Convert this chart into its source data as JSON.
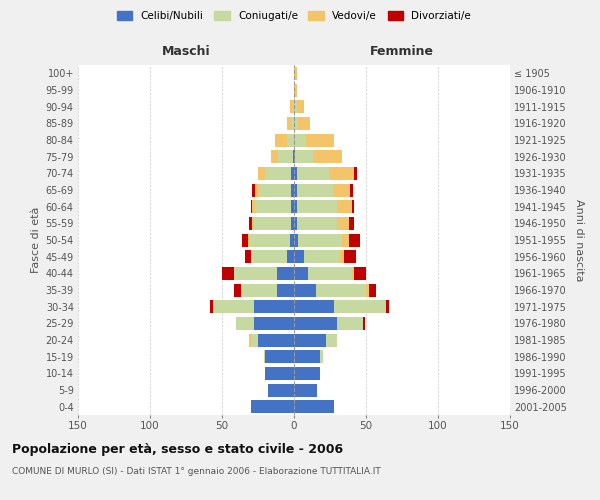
{
  "age_groups": [
    "0-4",
    "5-9",
    "10-14",
    "15-19",
    "20-24",
    "25-29",
    "30-34",
    "35-39",
    "40-44",
    "45-49",
    "50-54",
    "55-59",
    "60-64",
    "65-69",
    "70-74",
    "75-79",
    "80-84",
    "85-89",
    "90-94",
    "95-99",
    "100+"
  ],
  "birth_years": [
    "2001-2005",
    "1996-2000",
    "1991-1995",
    "1986-1990",
    "1981-1985",
    "1976-1980",
    "1971-1975",
    "1966-1970",
    "1961-1965",
    "1956-1960",
    "1951-1955",
    "1946-1950",
    "1941-1945",
    "1936-1940",
    "1931-1935",
    "1926-1930",
    "1921-1925",
    "1916-1920",
    "1911-1915",
    "1906-1910",
    "≤ 1905"
  ],
  "male_celibi": [
    30,
    18,
    20,
    20,
    25,
    28,
    28,
    12,
    12,
    5,
    3,
    2,
    2,
    2,
    2,
    1,
    0,
    0,
    0,
    0,
    0
  ],
  "male_coniugati": [
    0,
    0,
    0,
    1,
    5,
    12,
    28,
    25,
    30,
    25,
    28,
    26,
    25,
    22,
    18,
    10,
    5,
    2,
    1,
    0,
    0
  ],
  "male_vedovi": [
    0,
    0,
    0,
    0,
    1,
    0,
    0,
    0,
    0,
    0,
    1,
    1,
    2,
    3,
    5,
    5,
    8,
    3,
    2,
    0,
    0
  ],
  "male_divorziati": [
    0,
    0,
    0,
    0,
    0,
    0,
    2,
    5,
    8,
    4,
    4,
    2,
    1,
    2,
    0,
    0,
    0,
    0,
    0,
    0,
    0
  ],
  "female_celibi": [
    28,
    16,
    18,
    18,
    22,
    30,
    28,
    15,
    10,
    7,
    3,
    2,
    2,
    2,
    2,
    1,
    0,
    0,
    0,
    0,
    0
  ],
  "female_coniugati": [
    0,
    0,
    0,
    2,
    8,
    18,
    35,
    35,
    30,
    25,
    30,
    28,
    28,
    25,
    22,
    12,
    8,
    3,
    2,
    0,
    0
  ],
  "female_vedovi": [
    0,
    0,
    0,
    0,
    0,
    0,
    1,
    2,
    2,
    3,
    5,
    8,
    10,
    12,
    18,
    20,
    20,
    8,
    5,
    2,
    2
  ],
  "female_divorziati": [
    0,
    0,
    0,
    0,
    0,
    1,
    2,
    5,
    8,
    8,
    8,
    4,
    2,
    2,
    2,
    0,
    0,
    0,
    0,
    0,
    0
  ],
  "colors": {
    "celibi": "#4472c4",
    "coniugati": "#c5d9a0",
    "vedovi": "#f4c46a",
    "divorziati": "#c00000"
  },
  "title": "Popolazione per età, sesso e stato civile - 2006",
  "subtitle": "COMUNE DI MURLO (SI) - Dati ISTAT 1° gennaio 2006 - Elaborazione TUTTITALIA.IT",
  "xlabel_left": "Maschi",
  "xlabel_right": "Femmine",
  "ylabel_left": "Fasce di età",
  "ylabel_right": "Anni di nascita",
  "xlim": 150,
  "bg_color": "#f0f0f0",
  "plot_bg": "#ffffff"
}
